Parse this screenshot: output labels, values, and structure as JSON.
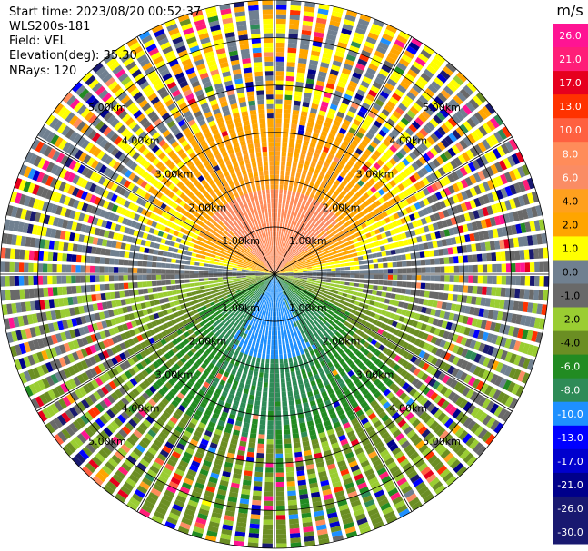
{
  "header": {
    "start_time": "Start time: 2023/08/20 00:52:37",
    "instrument": "WLS200s-181",
    "field": "Field: VEL",
    "elevation": "Elevation(deg): 35.30",
    "nrays": "NRays: 120"
  },
  "chart_data": {
    "type": "ppi-polar",
    "title": "",
    "field": "VEL",
    "units": "m/s",
    "n_rays": 120,
    "elevation_deg": 35.3,
    "range_rings_km": [
      1.0,
      2.0,
      3.0,
      4.0,
      5.0
    ],
    "range_ring_labels": [
      "1.00km",
      "2.00km",
      "3.00km",
      "4.00km",
      "5.00km"
    ],
    "max_range_km": 5.8,
    "spoke_angles_deg": [
      0,
      30,
      60,
      90,
      120,
      150,
      180,
      210,
      240,
      270,
      300,
      330
    ],
    "colorbar": {
      "label": "m/s",
      "ticks": [
        "26.0",
        "21.0",
        "17.0",
        "13.0",
        "10.0",
        "8.0",
        "6.0",
        "4.0",
        "2.0",
        "1.0",
        "0.0",
        "-1.0",
        "-2.0",
        "-4.0",
        "-6.0",
        "-8.0",
        "-10.0",
        "-13.0",
        "-17.0",
        "-21.0",
        "-26.0",
        "-30.0"
      ],
      "bins": [
        {
          "min": 26,
          "max": 30,
          "color": "#ff1493"
        },
        {
          "min": 21,
          "max": 26,
          "color": "#ff1e78"
        },
        {
          "min": 17,
          "max": 21,
          "color": "#e6001e"
        },
        {
          "min": 13,
          "max": 17,
          "color": "#ff3200"
        },
        {
          "min": 10,
          "max": 13,
          "color": "#ff6040"
        },
        {
          "min": 8,
          "max": 10,
          "color": "#ff8c5a"
        },
        {
          "min": 6,
          "max": 8,
          "color": "#fa8c64"
        },
        {
          "min": 4,
          "max": 6,
          "color": "#ffa01e"
        },
        {
          "min": 2,
          "max": 4,
          "color": "#ffa500"
        },
        {
          "min": 1,
          "max": 2,
          "color": "#ffff00"
        },
        {
          "min": 0,
          "max": 1,
          "color": "#708090"
        },
        {
          "min": -1,
          "max": 0,
          "color": "#696969"
        },
        {
          "min": -2,
          "max": -1,
          "color": "#9acd32"
        },
        {
          "min": -4,
          "max": -2,
          "color": "#6b8e23"
        },
        {
          "min": -6,
          "max": -4,
          "color": "#228b22"
        },
        {
          "min": -8,
          "max": -6,
          "color": "#2e8b57"
        },
        {
          "min": -10,
          "max": -8,
          "color": "#1e90ff"
        },
        {
          "min": -13,
          "max": -10,
          "color": "#0000ff"
        },
        {
          "min": -17,
          "max": -13,
          "color": "#0000cd"
        },
        {
          "min": -21,
          "max": -17,
          "color": "#00008b"
        },
        {
          "min": -26,
          "max": -21,
          "color": "#191970"
        },
        {
          "min": -30,
          "max": -26,
          "color": "#191970"
        }
      ]
    },
    "velocity_pattern": {
      "description_values_m_s": {
        "north_near_range": 9.0,
        "north_mid_range": 3.0,
        "north_far_range": 1.5,
        "east_west_axis": 0.0,
        "south_near_range": -9.0,
        "south_mid_range": -6.0,
        "south_far_range": -3.0
      }
    }
  }
}
